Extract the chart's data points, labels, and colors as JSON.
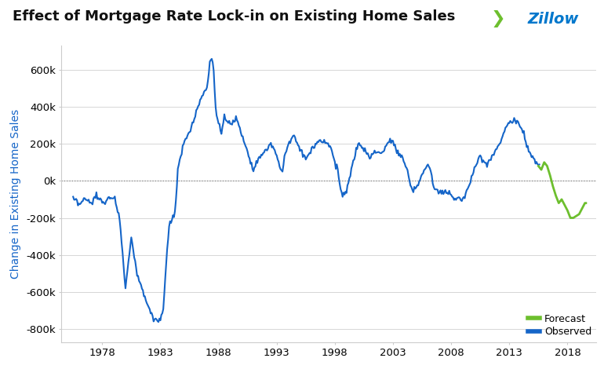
{
  "title": "Effect of Mortgage Rate Lock-in on Existing Home Sales",
  "ylabel": "Change in Existing Home Sales",
  "ylim": [
    -870000,
    730000
  ],
  "yticks": [
    -800000,
    -600000,
    -400000,
    -200000,
    0,
    200000,
    400000,
    600000
  ],
  "ytick_labels": [
    "-800k",
    "-600k",
    "-400k",
    "-200k",
    "0k",
    "200k",
    "400k",
    "600k"
  ],
  "xticks": [
    1978,
    1983,
    1988,
    1993,
    1998,
    2003,
    2008,
    2013,
    2018
  ],
  "xlim": [
    1974.5,
    2020.5
  ],
  "observed_color": "#1565C8",
  "forecast_color": "#6DBF2E",
  "background_color": "#ffffff",
  "grid_color": "#d0d0d0",
  "title_fontsize": 13,
  "axis_label_fontsize": 10,
  "tick_fontsize": 9.5,
  "zillow_blue": "#0077CC",
  "zillow_green": "#6DBF2E"
}
